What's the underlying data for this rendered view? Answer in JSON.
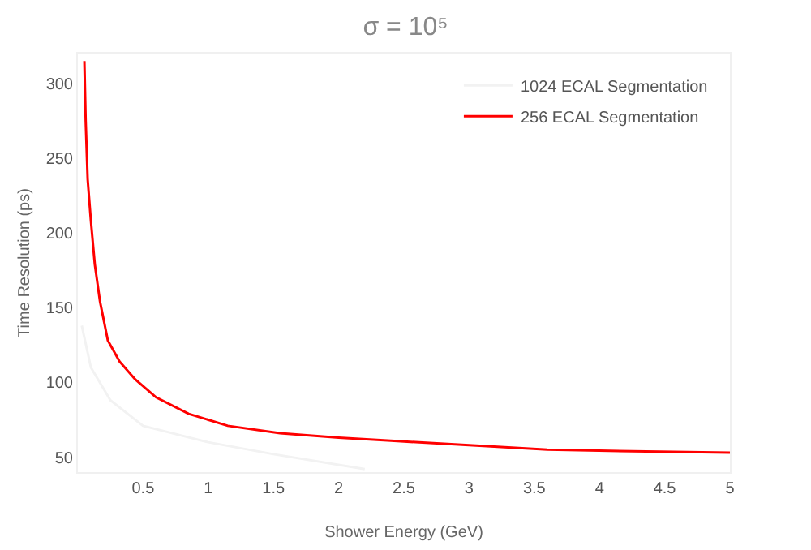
{
  "chart_data": {
    "type": "line",
    "title": "σ = 10⁵",
    "xlabel": "Shower Energy (GeV)",
    "ylabel": "Time Resolution (ps)",
    "xlim": [
      0,
      5
    ],
    "xticks": [
      0.5,
      1,
      1.5,
      2,
      2.5,
      3,
      3.5,
      4,
      4.5,
      5
    ],
    "ylim": [
      40,
      320
    ],
    "yticks": [
      50,
      100,
      150,
      200,
      250,
      300
    ],
    "grid": false,
    "legend": "top right",
    "marker": "none",
    "line_style": "solid",
    "series": [
      {
        "name": "1024 ECAL Segmentation",
        "color": "#f2f2f2",
        "x": [
          0.03,
          0.1,
          0.25,
          0.5,
          1,
          1.5,
          2.2
        ],
        "values": [
          138,
          110,
          88,
          71,
          60,
          52,
          42
        ]
      },
      {
        "name": "256 ECAL Segmentation",
        "color": "#ff0000",
        "x": [
          0.05,
          0.06,
          0.075,
          0.1,
          0.13,
          0.17,
          0.23,
          0.32,
          0.44,
          0.6,
          0.85,
          1.15,
          1.55,
          2,
          2.4,
          3,
          3.6,
          4.25,
          5
        ],
        "values": [
          315,
          275,
          236,
          208,
          179,
          154,
          128,
          114,
          102,
          90,
          79,
          71,
          66,
          63,
          61,
          58,
          55,
          54,
          53
        ]
      }
    ]
  }
}
